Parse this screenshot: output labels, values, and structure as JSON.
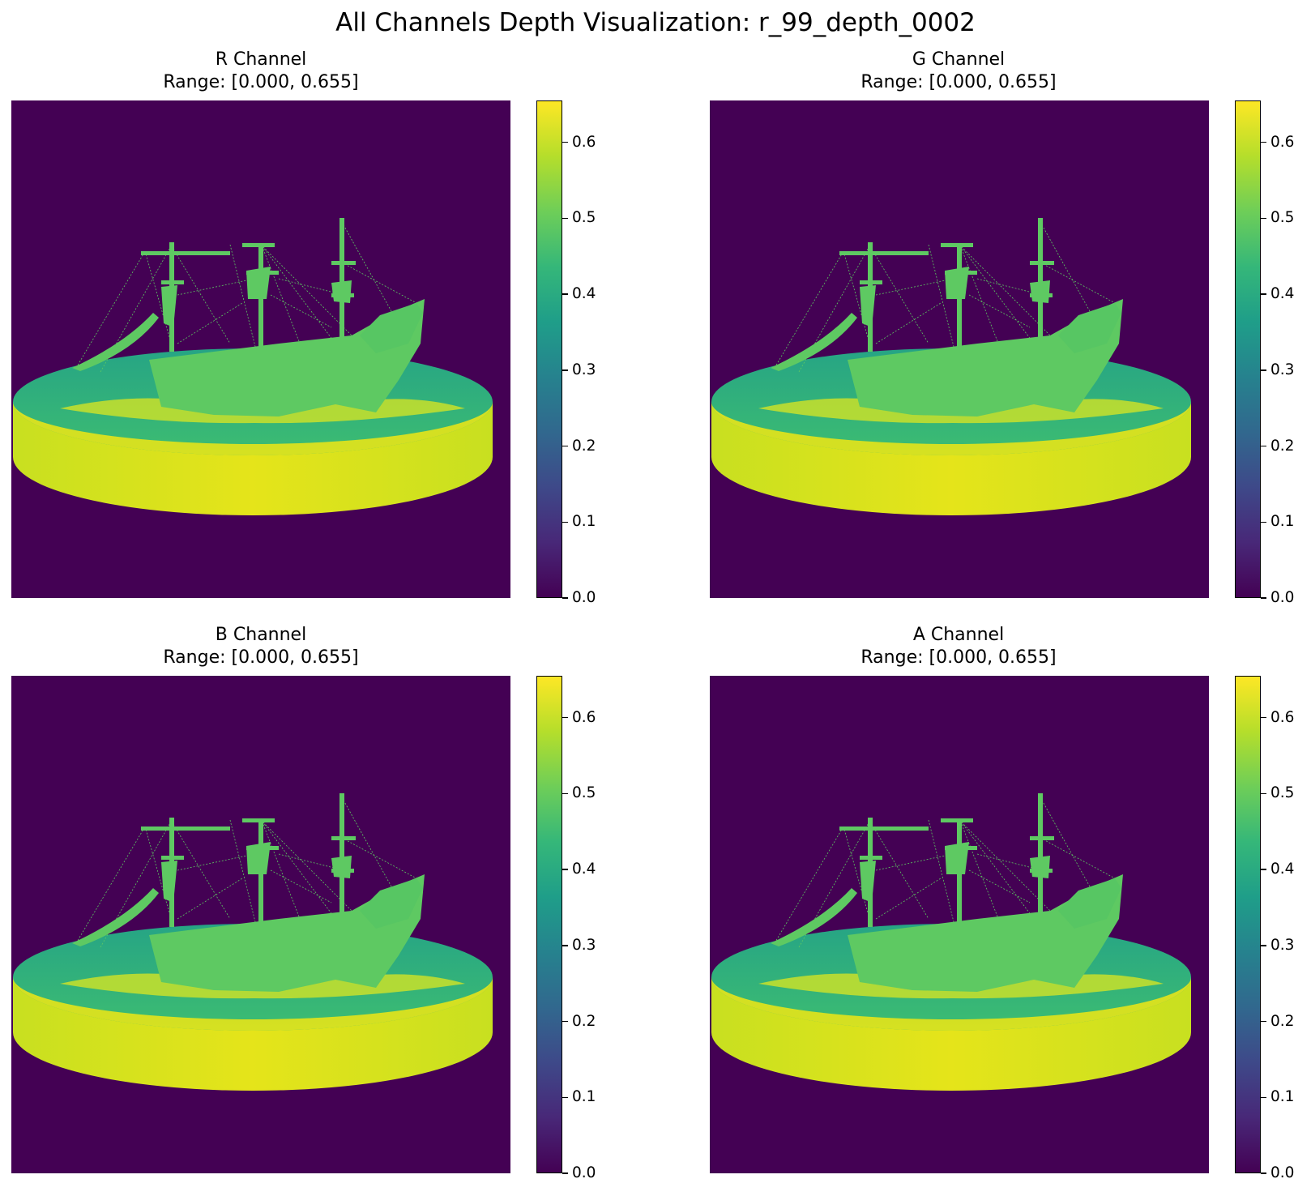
{
  "figure": {
    "title": "All Channels Depth Visualization: r_99_depth_0002"
  },
  "colors": {
    "background": "#440154",
    "viridis": [
      "#440154",
      "#482878",
      "#3e4989",
      "#31688e",
      "#26828e",
      "#1f9e89",
      "#35b779",
      "#6ece58",
      "#b5de2b",
      "#fde725"
    ],
    "ship": "#5ec962",
    "water_far": "#26a485",
    "water_mid": "#3dbd71",
    "rim_near": "#e5e41a",
    "rim_edge": "#c8e020"
  },
  "chart_data": [
    {
      "type": "heatmap",
      "title": "R Channel",
      "subtitle": "Range: [0.000, 0.655]",
      "colormap": "viridis",
      "vmin": 0.0,
      "vmax": 0.655,
      "colorbar_ticks": [
        "0.0",
        "0.1",
        "0.2",
        "0.3",
        "0.4",
        "0.5",
        "0.6"
      ],
      "axes": "off"
    },
    {
      "type": "heatmap",
      "title": "G Channel",
      "subtitle": "Range: [0.000, 0.655]",
      "colormap": "viridis",
      "vmin": 0.0,
      "vmax": 0.655,
      "colorbar_ticks": [
        "0.0",
        "0.1",
        "0.2",
        "0.3",
        "0.4",
        "0.5",
        "0.6"
      ],
      "axes": "off"
    },
    {
      "type": "heatmap",
      "title": "B Channel",
      "subtitle": "Range: [0.000, 0.655]",
      "colormap": "viridis",
      "vmin": 0.0,
      "vmax": 0.655,
      "colorbar_ticks": [
        "0.0",
        "0.1",
        "0.2",
        "0.3",
        "0.4",
        "0.5",
        "0.6"
      ],
      "axes": "off"
    },
    {
      "type": "heatmap",
      "title": "A Channel",
      "subtitle": "Range: [0.000, 0.655]",
      "colormap": "viridis",
      "vmin": 0.0,
      "vmax": 0.655,
      "colorbar_ticks": [
        "0.0",
        "0.1",
        "0.2",
        "0.3",
        "0.4",
        "0.5",
        "0.6"
      ],
      "axes": "off"
    }
  ]
}
